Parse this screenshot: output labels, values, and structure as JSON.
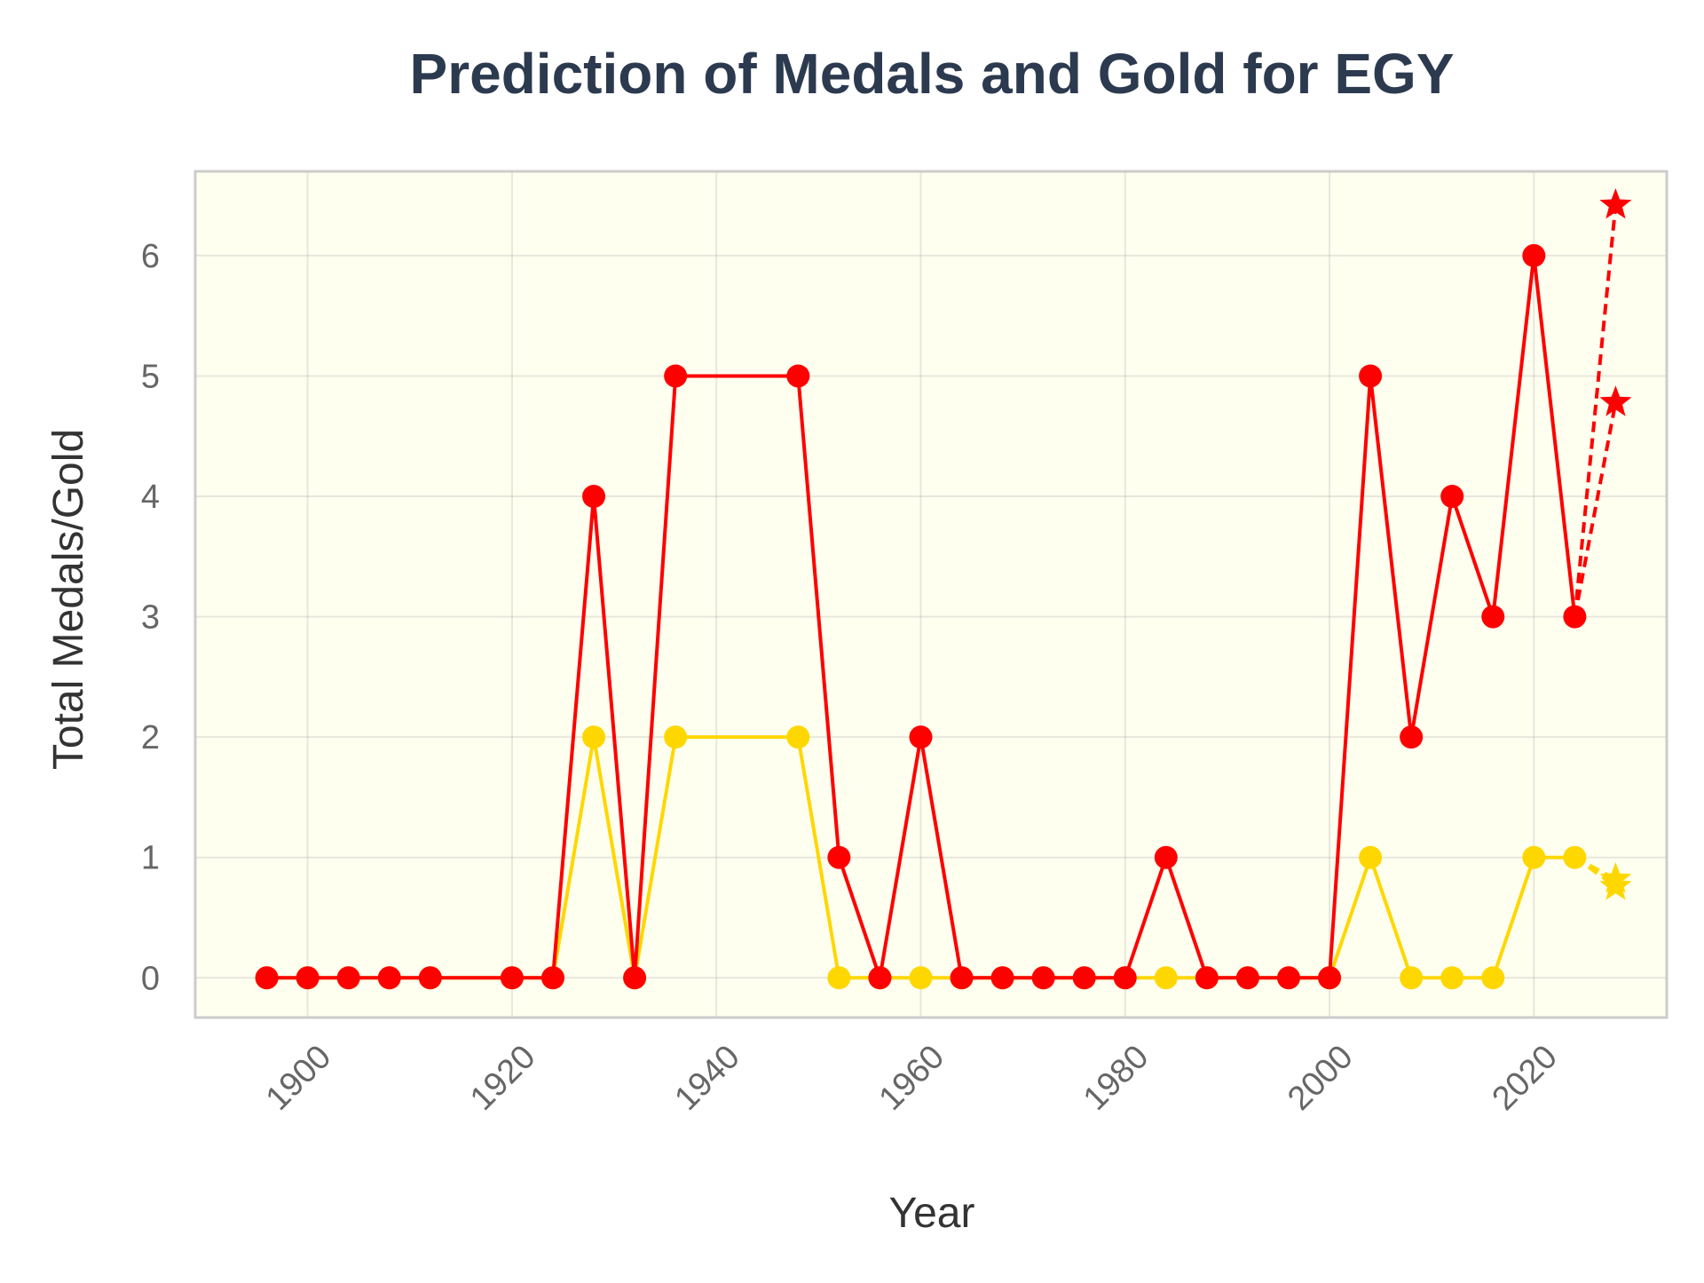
{
  "chart_data": {
    "type": "line",
    "title": "Prediction of Medals and Gold for EGY",
    "xlabel": "Year",
    "ylabel": "Total Medals/Gold",
    "xlim": [
      1889,
      2033
    ],
    "ylim": [
      -0.33,
      6.7
    ],
    "xticks": [
      1900,
      1920,
      1940,
      1960,
      1980,
      2000,
      2020
    ],
    "yticks": [
      0,
      1,
      2,
      3,
      4,
      5,
      6
    ],
    "grid": true,
    "background_color": "#fffff0",
    "series": [
      {
        "color": "#ff0000",
        "style": "solid",
        "marker": "circle",
        "x": [
          1896,
          1900,
          1904,
          1908,
          1912,
          1920,
          1924,
          1928,
          1932,
          1936,
          1948,
          1952,
          1956,
          1960,
          1964,
          1968,
          1972,
          1976,
          1980,
          1984,
          1988,
          1992,
          1996,
          2000,
          2004,
          2008,
          2012,
          2016,
          2020,
          2024
        ],
        "values": [
          0,
          0,
          0,
          0,
          0,
          0,
          0,
          4,
          0,
          5,
          5,
          1,
          0,
          2,
          0,
          0,
          0,
          0,
          0,
          1,
          0,
          0,
          0,
          0,
          5,
          2,
          4,
          3,
          6,
          3
        ]
      },
      {
        "color": "#ffd700",
        "style": "solid",
        "marker": "circle",
        "x": [
          1896,
          1900,
          1904,
          1908,
          1912,
          1920,
          1924,
          1928,
          1932,
          1936,
          1948,
          1952,
          1956,
          1960,
          1964,
          1968,
          1972,
          1976,
          1980,
          1984,
          1988,
          1992,
          1996,
          2000,
          2004,
          2008,
          2012,
          2016,
          2020,
          2024
        ],
        "values": [
          0,
          0,
          0,
          0,
          0,
          0,
          0,
          2,
          0,
          2,
          2,
          0,
          0,
          0,
          0,
          0,
          0,
          0,
          0,
          0,
          0,
          0,
          0,
          0,
          1,
          0,
          0,
          0,
          1,
          1
        ]
      },
      {
        "color": "#ff0000",
        "style": "dashed",
        "marker": "star",
        "x": [
          2024,
          2028
        ],
        "values": [
          3,
          6.42
        ]
      },
      {
        "color": "#ff0000",
        "style": "dashed",
        "marker": "star",
        "x": [
          2024,
          2028
        ],
        "values": [
          3,
          4.78
        ]
      },
      {
        "color": "#ffd700",
        "style": "dashed",
        "marker": "star",
        "x": [
          2024,
          2028
        ],
        "values": [
          1,
          0.82
        ]
      },
      {
        "color": "#ffd700",
        "style": "dashed",
        "marker": "star",
        "x": [
          2024,
          2028
        ],
        "values": [
          1,
          0.76
        ]
      }
    ]
  }
}
